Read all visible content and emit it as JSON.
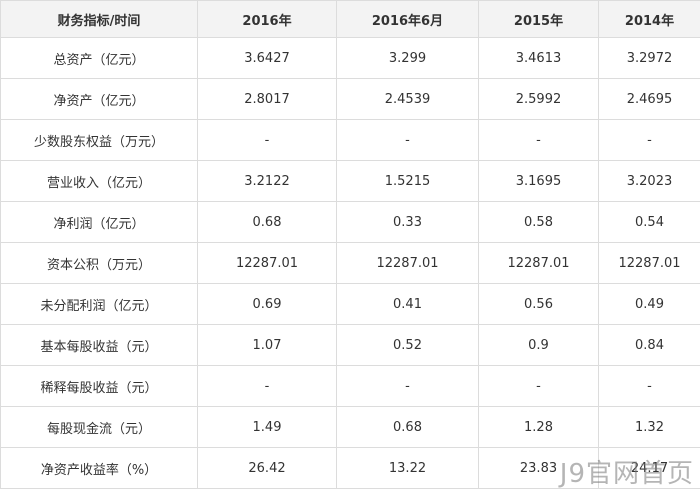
{
  "table": {
    "header": [
      "财务指标/时间",
      "2016年",
      "2016年6月",
      "2015年",
      "2014年"
    ],
    "rows": [
      [
        "总资产（亿元）",
        "3.6427",
        "3.299",
        "3.4613",
        "3.2972"
      ],
      [
        "净资产（亿元）",
        "2.8017",
        "2.4539",
        "2.5992",
        "2.4695"
      ],
      [
        "少数股东权益（万元）",
        "-",
        "-",
        "-",
        "-"
      ],
      [
        "营业收入（亿元）",
        "3.2122",
        "1.5215",
        "3.1695",
        "3.2023"
      ],
      [
        "净利润（亿元）",
        "0.68",
        "0.33",
        "0.58",
        "0.54"
      ],
      [
        "资本公积（万元）",
        "12287.01",
        "12287.01",
        "12287.01",
        "12287.01"
      ],
      [
        "未分配利润（亿元）",
        "0.69",
        "0.41",
        "0.56",
        "0.49"
      ],
      [
        "基本每股收益（元）",
        "1.07",
        "0.52",
        "0.9",
        "0.84"
      ],
      [
        "稀释每股收益（元）",
        "-",
        "-",
        "-",
        "-"
      ],
      [
        "每股现金流（元）",
        "1.49",
        "0.68",
        "1.28",
        "1.32"
      ],
      [
        "净资产收益率（%）",
        "26.42",
        "13.22",
        "23.83",
        "24.17"
      ]
    ]
  },
  "watermark": "J9官网首页"
}
